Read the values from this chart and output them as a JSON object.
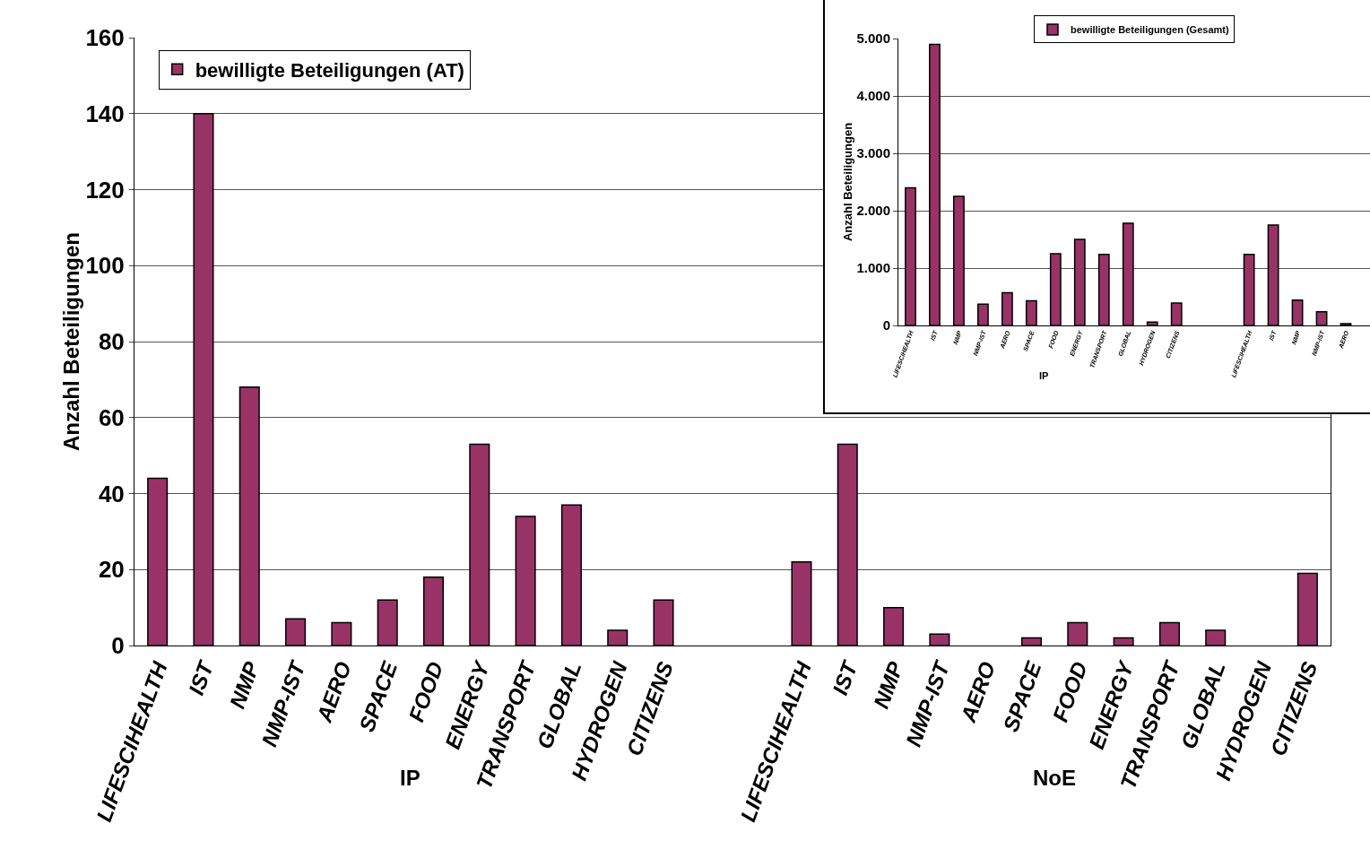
{
  "chart_data": [
    {
      "type": "bar",
      "ylabel": "Anzahl Beteiligungen",
      "annotations": [
        "IP",
        "NoE"
      ],
      "categories": [
        "LIFESCIHEALTH",
        "IST",
        "NMP",
        "NMP-IST",
        "AERO",
        "SPACE",
        "FOOD",
        "ENERGY",
        "TRANSPORT",
        "GLOBAL",
        "HYDROGEN",
        "CITIZENS",
        null,
        null,
        "LIFESCIHEALTH",
        "IST",
        "NMP",
        "NMP-IST",
        "AERO",
        "SPACE",
        "FOOD",
        "ENERGY",
        "TRANSPORT",
        "GLOBAL",
        "HYDROGEN",
        "CITIZENS"
      ],
      "series": [
        {
          "name": "bewilligte Beteiligungen (AT)",
          "color": "#993366",
          "values": [
            44,
            140,
            68,
            7,
            6,
            12,
            18,
            53,
            34,
            37,
            4,
            12,
            null,
            null,
            22,
            53,
            10,
            3,
            0,
            2,
            6,
            2,
            6,
            4,
            0,
            19
          ]
        }
      ],
      "ylim": [
        0,
        160
      ],
      "yticks": [
        0,
        20,
        40,
        60,
        80,
        100,
        120,
        140,
        160
      ],
      "grid": "y",
      "legend": "top left"
    },
    {
      "type": "bar",
      "ylabel": "Anzahl Beteiligungen",
      "annotations": [
        "IP"
      ],
      "categories": [
        "LIFESCIHEALTH",
        "IST",
        "NMP",
        "NMP-IST",
        "AERO",
        "SPACE",
        "FOOD",
        "ENERGY",
        "TRANSPORT",
        "GLOBAL",
        "HYDROGEN",
        "CITIZENS",
        null,
        null,
        "LIFESCIHEALTH",
        "IST",
        "NMP",
        "NMP-IST",
        "AERO"
      ],
      "series": [
        {
          "name": "bewilligte Beteiligungen (Gesamt)",
          "color": "#993366",
          "values": [
            2400,
            4900,
            2250,
            370,
            570,
            430,
            1250,
            1500,
            1240,
            1780,
            60,
            390,
            null,
            null,
            1240,
            1750,
            440,
            240,
            30
          ]
        }
      ],
      "ylim": [
        0,
        5000
      ],
      "yticks": [
        {
          "value": 0,
          "label": "0"
        },
        {
          "value": 1000,
          "label": "1.000"
        },
        {
          "value": 2000,
          "label": "2.000"
        },
        {
          "value": 3000,
          "label": "3.000"
        },
        {
          "value": 4000,
          "label": "4.000"
        },
        {
          "value": 5000,
          "label": "5.000"
        }
      ],
      "grid": "y",
      "legend": "top"
    }
  ]
}
